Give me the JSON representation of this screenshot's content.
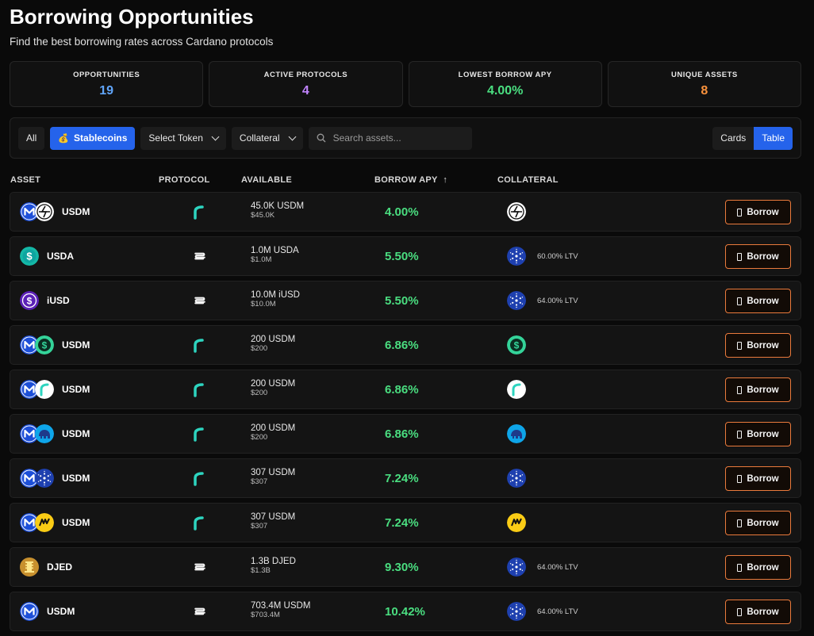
{
  "header": {
    "title": "Borrowing Opportunities",
    "subtitle": "Find the best borrowing rates across Cardano protocols"
  },
  "stats": [
    {
      "label": "OPPORTUNITIES",
      "value": "19",
      "color": "#60a5fa"
    },
    {
      "label": "ACTIVE PROTOCOLS",
      "value": "4",
      "color": "#c084fc"
    },
    {
      "label": "LOWEST BORROW APY",
      "value": "4.00%",
      "color": "#4ade80"
    },
    {
      "label": "UNIQUE ASSETS",
      "value": "8",
      "color": "#fb923c"
    }
  ],
  "filters": {
    "all": "All",
    "stablecoins": "Stablecoins",
    "select_token": "Select Token",
    "collateral": "Collateral",
    "search_placeholder": "Search assets...",
    "view_cards": "Cards",
    "view_table": "Table"
  },
  "table": {
    "columns": {
      "asset": "ASSET",
      "protocol": "PROTOCOL",
      "available": "AVAILABLE",
      "borrow_apy": "BORROW APY",
      "sort_indicator": "↑",
      "collateral": "COLLATERAL"
    },
    "borrow_label": "Borrow",
    "rows": [
      {
        "asset": "USDM",
        "asset_icons": [
          "usdm",
          "strike"
        ],
        "protocol": "fluid",
        "available": "45.0K USDM",
        "available_usd": "$45.0K",
        "apy": "4.00%",
        "collateral_icon": "strike",
        "ltv": ""
      },
      {
        "asset": "USDA",
        "asset_icons": [
          "usda"
        ],
        "protocol": "liqwid",
        "available": "1.0M USDA",
        "available_usd": "$1.0M",
        "apy": "5.50%",
        "collateral_icon": "ada",
        "ltv": "60.00% LTV"
      },
      {
        "asset": "iUSD",
        "asset_icons": [
          "iusd"
        ],
        "protocol": "liqwid",
        "available": "10.0M iUSD",
        "available_usd": "$10.0M",
        "apy": "5.50%",
        "collateral_icon": "ada",
        "ltv": "64.00% LTV"
      },
      {
        "asset": "USDM",
        "asset_icons": [
          "usdm",
          "green-s"
        ],
        "protocol": "fluid",
        "available": "200 USDM",
        "available_usd": "$200",
        "apy": "6.86%",
        "collateral_icon": "green-s",
        "ltv": ""
      },
      {
        "asset": "USDM",
        "asset_icons": [
          "usdm",
          "fluid-white"
        ],
        "protocol": "fluid",
        "available": "200 USDM",
        "available_usd": "$200",
        "apy": "6.86%",
        "collateral_icon": "fluid-white",
        "ltv": ""
      },
      {
        "asset": "USDM",
        "asset_icons": [
          "usdm",
          "elephant"
        ],
        "protocol": "fluid",
        "available": "200 USDM",
        "available_usd": "$200",
        "apy": "6.86%",
        "collateral_icon": "elephant",
        "ltv": ""
      },
      {
        "asset": "USDM",
        "asset_icons": [
          "usdm",
          "ada"
        ],
        "protocol": "fluid",
        "available": "307 USDM",
        "available_usd": "$307",
        "apy": "7.24%",
        "collateral_icon": "ada",
        "ltv": ""
      },
      {
        "asset": "USDM",
        "asset_icons": [
          "usdm",
          "wing"
        ],
        "protocol": "fluid",
        "available": "307 USDM",
        "available_usd": "$307",
        "apy": "7.24%",
        "collateral_icon": "wing",
        "ltv": ""
      },
      {
        "asset": "DJED",
        "asset_icons": [
          "djed"
        ],
        "protocol": "liqwid",
        "available": "1.3B DJED",
        "available_usd": "$1.3B",
        "apy": "9.30%",
        "collateral_icon": "ada",
        "ltv": "64.00% LTV"
      },
      {
        "asset": "USDM",
        "asset_icons": [
          "usdm"
        ],
        "protocol": "liqwid",
        "available": "703.4M USDM",
        "available_usd": "$703.4M",
        "apy": "10.42%",
        "collateral_icon": "ada",
        "ltv": "64.00% LTV"
      }
    ]
  },
  "colors": {
    "accent_blue": "#2563eb",
    "apy_green": "#4ade80",
    "borrow_border": "#ea7a3c"
  }
}
